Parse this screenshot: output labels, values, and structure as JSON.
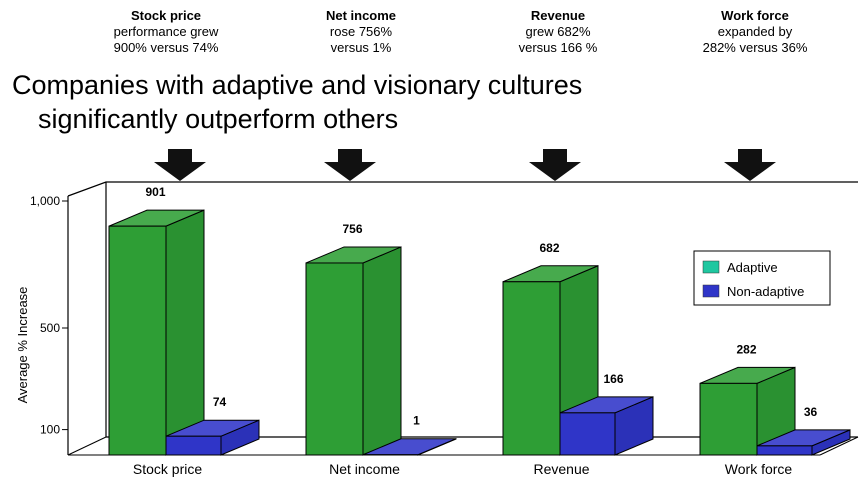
{
  "callouts": [
    {
      "heading": "Stock price",
      "line1": "performance grew",
      "line2": "900% versus 74%"
    },
    {
      "heading": "Net income",
      "line1": "rose 756%",
      "line2": "versus 1%"
    },
    {
      "heading": "Revenue",
      "line1": "grew 682%",
      "line2": "versus 166 %"
    },
    {
      "heading": "Work force",
      "line1": "expanded by",
      "line2": "282% versus 36%"
    }
  ],
  "headline": {
    "line1": "Companies with adaptive and visionary cultures",
    "line2": "significantly outperform others"
  },
  "chart_data": {
    "type": "bar",
    "categories": [
      "Stock price",
      "Net income",
      "Revenue",
      "Work force"
    ],
    "series": [
      {
        "name": "Adaptive",
        "values": [
          901,
          756,
          682,
          282
        ],
        "color": "#2e9e35"
      },
      {
        "name": "Non-adaptive",
        "values": [
          74,
          1,
          166,
          36
        ],
        "color": "#2f35c8"
      }
    ],
    "ylabel": "Average % Increase",
    "ticks": [
      "1,000",
      "500",
      "100"
    ],
    "tick_values": [
      1000,
      500,
      100
    ],
    "legend_position": "right",
    "legend_swatch_colors": [
      "#1fc7a0",
      "#2f35c8"
    ]
  }
}
